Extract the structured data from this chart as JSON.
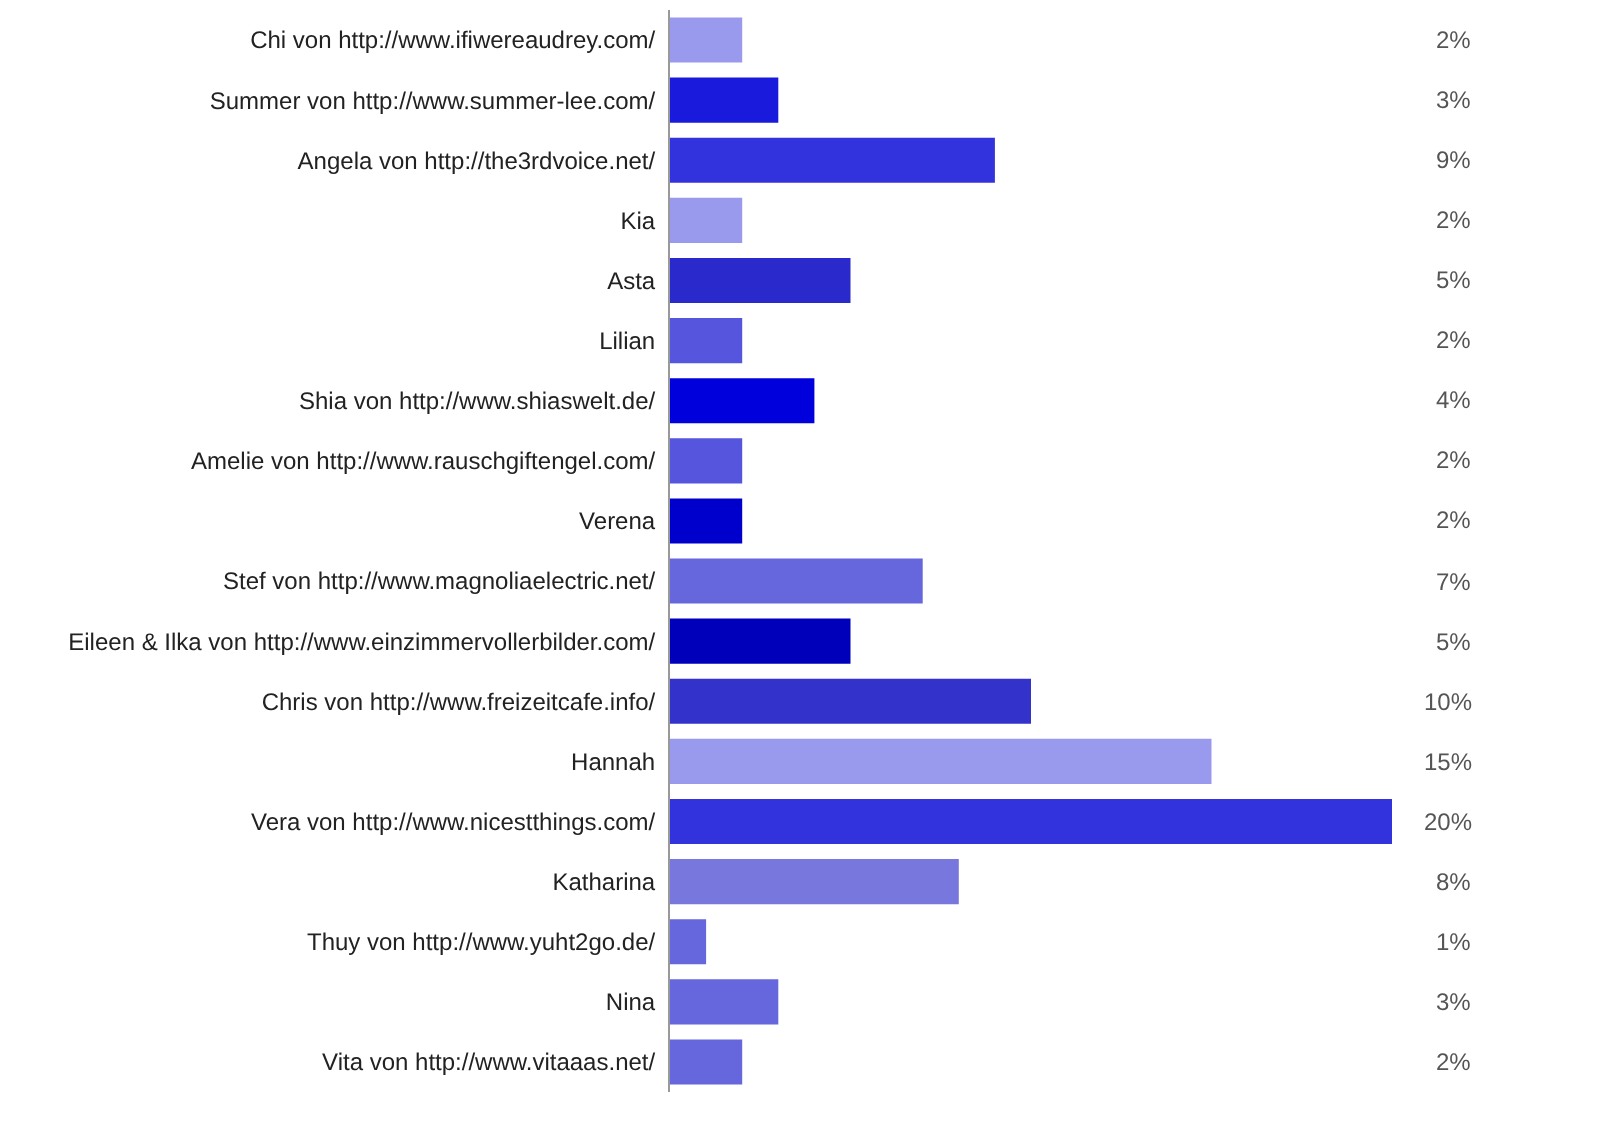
{
  "chart_data": {
    "type": "bar",
    "orientation": "horizontal",
    "categories": [
      "Chi von http://www.ifiwereaudrey.com/",
      "Summer von http://www.summer-lee.com/",
      "Angela von http://the3rdvoice.net/",
      "Kia",
      "Asta",
      "Lilian",
      "Shia von http://www.shiaswelt.de/",
      "Amelie von http://www.rauschgiftengel.com/",
      "Verena",
      "Stef von http://www.magnoliaelectric.net/",
      "Eileen & Ilka von http://www.einzimmervollerbilder.com/",
      "Chris von http://www.freizeitcafe.info/",
      "Hannah",
      "Vera von http://www.nicestthings.com/",
      "Katharina",
      "Thuy von http://www.yuht2go.de/",
      "Nina",
      "Vita von http://www.vitaaas.net/"
    ],
    "values": [
      2,
      3,
      9,
      2,
      5,
      2,
      4,
      2,
      2,
      7,
      5,
      10,
      15,
      20,
      8,
      1,
      3,
      2
    ],
    "value_labels": [
      "2%",
      "3%",
      "9%",
      "2%",
      "5%",
      "2%",
      "4%",
      "2%",
      "2%",
      "7%",
      "5%",
      "10%",
      "15%",
      "20%",
      "8%",
      "1%",
      "3%",
      "2%"
    ],
    "colors": [
      "#9999ee",
      "#1a1add",
      "#3333dd",
      "#9999ee",
      "#2a2acc",
      "#5555dd",
      "#0000dd",
      "#5555dd",
      "#0000cc",
      "#6666dd",
      "#0000bb",
      "#3333cc",
      "#9999ee",
      "#3333dd",
      "#7777dd",
      "#6666dd",
      "#6666dd",
      "#6666dd"
    ],
    "legend": false
  }
}
